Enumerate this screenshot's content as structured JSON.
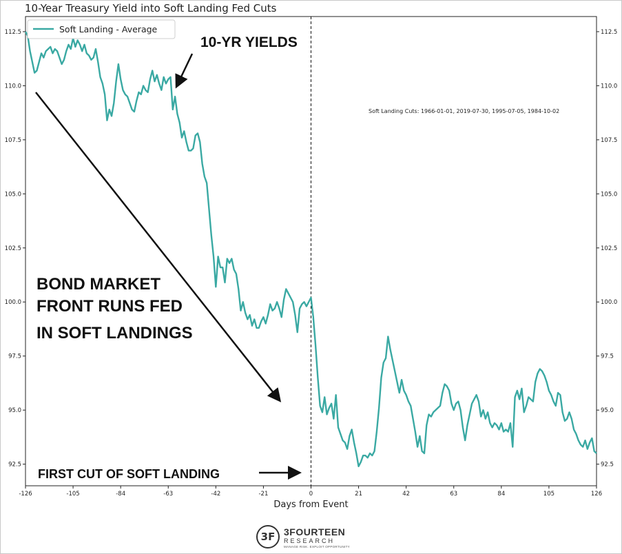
{
  "chart_data": {
    "type": "line",
    "title": "10-Year Treasury Yield into Soft Landing Fed Cuts",
    "xlabel": "Days from Event",
    "ylabel": "",
    "xlim": [
      -126,
      126
    ],
    "ylim": [
      91.5,
      113.2
    ],
    "x_ticks": [
      -126,
      -105,
      -84,
      -63,
      -42,
      -21,
      0,
      21,
      42,
      63,
      84,
      105,
      126
    ],
    "y_ticks": [
      "92.5",
      "95.0",
      "97.5",
      "100.0",
      "102.5",
      "105.0",
      "107.5",
      "110.0",
      "112.5"
    ],
    "legend_position": "top-left",
    "grid": false,
    "line_color": "#3aa9a3",
    "event_line_x": 0,
    "series": [
      {
        "name": "Soft Landing - Average",
        "points": [
          [
            -126,
            112.5
          ],
          [
            -125,
            112.3
          ],
          [
            -124,
            111.6
          ],
          [
            -123,
            111.1
          ],
          [
            -122,
            110.6
          ],
          [
            -121,
            110.7
          ],
          [
            -120,
            111.1
          ],
          [
            -119,
            111.5
          ],
          [
            -118,
            111.3
          ],
          [
            -117,
            111.6
          ],
          [
            -116,
            111.7
          ],
          [
            -115,
            111.8
          ],
          [
            -114,
            111.5
          ],
          [
            -113,
            111.7
          ],
          [
            -112,
            111.6
          ],
          [
            -111,
            111.3
          ],
          [
            -110,
            111.0
          ],
          [
            -109,
            111.2
          ],
          [
            -108,
            111.6
          ],
          [
            -107,
            111.9
          ],
          [
            -106,
            111.7
          ],
          [
            -105,
            112.2
          ],
          [
            -104,
            111.8
          ],
          [
            -103,
            112.1
          ],
          [
            -102,
            111.9
          ],
          [
            -101,
            111.6
          ],
          [
            -100,
            111.9
          ],
          [
            -99,
            111.5
          ],
          [
            -98,
            111.4
          ],
          [
            -97,
            111.2
          ],
          [
            -96,
            111.3
          ],
          [
            -95,
            111.7
          ],
          [
            -94,
            111.1
          ],
          [
            -93,
            110.4
          ],
          [
            -92,
            110.1
          ],
          [
            -91,
            109.6
          ],
          [
            -90,
            108.4
          ],
          [
            -89,
            108.9
          ],
          [
            -88,
            108.6
          ],
          [
            -87,
            109.2
          ],
          [
            -86,
            110.2
          ],
          [
            -85,
            111.0
          ],
          [
            -84,
            110.3
          ],
          [
            -83,
            109.8
          ],
          [
            -82,
            109.6
          ],
          [
            -81,
            109.5
          ],
          [
            -80,
            109.2
          ],
          [
            -79,
            108.9
          ],
          [
            -78,
            108.8
          ],
          [
            -77,
            109.3
          ],
          [
            -76,
            109.7
          ],
          [
            -75,
            109.6
          ],
          [
            -74,
            110.0
          ],
          [
            -73,
            109.8
          ],
          [
            -72,
            109.7
          ],
          [
            -71,
            110.3
          ],
          [
            -70,
            110.7
          ],
          [
            -69,
            110.2
          ],
          [
            -68,
            110.5
          ],
          [
            -67,
            110.1
          ],
          [
            -66,
            109.8
          ],
          [
            -65,
            110.4
          ],
          [
            -64,
            110.1
          ],
          [
            -63,
            110.3
          ],
          [
            -62,
            110.4
          ],
          [
            -61,
            108.9
          ],
          [
            -60,
            109.5
          ],
          [
            -59,
            108.7
          ],
          [
            -58,
            108.3
          ],
          [
            -57,
            107.6
          ],
          [
            -56,
            107.9
          ],
          [
            -55,
            107.4
          ],
          [
            -54,
            107.0
          ],
          [
            -53,
            107.0
          ],
          [
            -52,
            107.1
          ],
          [
            -51,
            107.7
          ],
          [
            -50,
            107.8
          ],
          [
            -49,
            107.4
          ],
          [
            -48,
            106.4
          ],
          [
            -47,
            105.8
          ],
          [
            -46,
            105.5
          ],
          [
            -45,
            104.3
          ],
          [
            -44,
            103.1
          ],
          [
            -43,
            102.1
          ],
          [
            -42,
            100.7
          ],
          [
            -41,
            102.1
          ],
          [
            -40,
            101.6
          ],
          [
            -39,
            101.6
          ],
          [
            -38,
            100.9
          ],
          [
            -37,
            102.0
          ],
          [
            -36,
            101.8
          ],
          [
            -35,
            102.0
          ],
          [
            -34,
            101.5
          ],
          [
            -33,
            101.3
          ],
          [
            -32,
            100.6
          ],
          [
            -31,
            99.6
          ],
          [
            -30,
            100.0
          ],
          [
            -29,
            99.5
          ],
          [
            -28,
            99.2
          ],
          [
            -27,
            99.4
          ],
          [
            -26,
            98.9
          ],
          [
            -25,
            99.2
          ],
          [
            -24,
            98.8
          ],
          [
            -23,
            98.8
          ],
          [
            -22,
            99.1
          ],
          [
            -21,
            99.3
          ],
          [
            -20,
            99.0
          ],
          [
            -19,
            99.4
          ],
          [
            -18,
            99.9
          ],
          [
            -17,
            99.6
          ],
          [
            -16,
            99.7
          ],
          [
            -15,
            100.0
          ],
          [
            -14,
            99.7
          ],
          [
            -13,
            99.3
          ],
          [
            -12,
            100.1
          ],
          [
            -11,
            100.6
          ],
          [
            -10,
            100.4
          ],
          [
            -9,
            100.2
          ],
          [
            -8,
            100.0
          ],
          [
            -7,
            99.4
          ],
          [
            -6,
            98.6
          ],
          [
            -5,
            99.7
          ],
          [
            -4,
            99.9
          ],
          [
            -3,
            100.0
          ],
          [
            -2,
            99.8
          ],
          [
            -1,
            100.0
          ],
          [
            0,
            100.2
          ],
          [
            1,
            99.3
          ],
          [
            2,
            98.0
          ],
          [
            3,
            96.5
          ],
          [
            4,
            95.2
          ],
          [
            5,
            94.9
          ],
          [
            6,
            95.6
          ],
          [
            7,
            94.8
          ],
          [
            8,
            95.1
          ],
          [
            9,
            95.3
          ],
          [
            10,
            94.6
          ],
          [
            11,
            95.7
          ],
          [
            12,
            94.2
          ],
          [
            13,
            93.9
          ],
          [
            14,
            93.6
          ],
          [
            15,
            93.5
          ],
          [
            16,
            93.2
          ],
          [
            17,
            93.8
          ],
          [
            18,
            94.1
          ],
          [
            19,
            93.5
          ],
          [
            20,
            93.0
          ],
          [
            21,
            92.4
          ],
          [
            22,
            92.6
          ],
          [
            23,
            92.9
          ],
          [
            24,
            92.9
          ],
          [
            25,
            92.8
          ],
          [
            26,
            93.0
          ],
          [
            27,
            92.9
          ],
          [
            28,
            93.1
          ],
          [
            29,
            94.0
          ],
          [
            30,
            95.1
          ],
          [
            31,
            96.5
          ],
          [
            32,
            97.2
          ],
          [
            33,
            97.4
          ],
          [
            34,
            98.4
          ],
          [
            35,
            97.8
          ],
          [
            36,
            97.3
          ],
          [
            37,
            96.8
          ],
          [
            38,
            96.3
          ],
          [
            39,
            95.8
          ],
          [
            40,
            96.4
          ],
          [
            41,
            95.9
          ],
          [
            42,
            95.7
          ],
          [
            43,
            95.4
          ],
          [
            44,
            95.2
          ],
          [
            45,
            94.6
          ],
          [
            46,
            94.0
          ],
          [
            47,
            93.3
          ],
          [
            48,
            93.8
          ],
          [
            49,
            93.1
          ],
          [
            50,
            93.0
          ],
          [
            51,
            94.3
          ],
          [
            52,
            94.8
          ],
          [
            53,
            94.7
          ],
          [
            54,
            94.9
          ],
          [
            55,
            95.0
          ],
          [
            56,
            95.1
          ],
          [
            57,
            95.2
          ],
          [
            58,
            95.8
          ],
          [
            59,
            96.2
          ],
          [
            60,
            96.1
          ],
          [
            61,
            95.9
          ],
          [
            62,
            95.3
          ],
          [
            63,
            95.0
          ],
          [
            64,
            95.3
          ],
          [
            65,
            95.4
          ],
          [
            66,
            95.0
          ],
          [
            67,
            94.2
          ],
          [
            68,
            93.6
          ],
          [
            69,
            94.3
          ],
          [
            70,
            94.8
          ],
          [
            71,
            95.3
          ],
          [
            72,
            95.5
          ],
          [
            73,
            95.7
          ],
          [
            74,
            95.4
          ],
          [
            75,
            94.7
          ],
          [
            76,
            95.0
          ],
          [
            77,
            94.6
          ],
          [
            78,
            94.9
          ],
          [
            79,
            94.4
          ],
          [
            80,
            94.2
          ],
          [
            81,
            94.4
          ],
          [
            82,
            94.3
          ],
          [
            83,
            94.1
          ],
          [
            84,
            94.4
          ],
          [
            85,
            94.0
          ],
          [
            86,
            94.1
          ],
          [
            87,
            94.0
          ],
          [
            88,
            94.4
          ],
          [
            89,
            93.3
          ],
          [
            90,
            95.6
          ],
          [
            91,
            95.9
          ],
          [
            92,
            95.5
          ],
          [
            93,
            96.0
          ],
          [
            94,
            94.9
          ],
          [
            95,
            95.2
          ],
          [
            96,
            95.6
          ],
          [
            97,
            95.5
          ],
          [
            98,
            95.4
          ],
          [
            99,
            96.3
          ],
          [
            100,
            96.7
          ],
          [
            101,
            96.9
          ],
          [
            102,
            96.8
          ],
          [
            103,
            96.6
          ],
          [
            104,
            96.3
          ],
          [
            105,
            95.9
          ],
          [
            106,
            95.7
          ],
          [
            107,
            95.4
          ],
          [
            108,
            95.2
          ],
          [
            109,
            95.8
          ],
          [
            110,
            95.7
          ],
          [
            111,
            94.9
          ],
          [
            112,
            94.5
          ],
          [
            113,
            94.6
          ],
          [
            114,
            94.9
          ],
          [
            115,
            94.6
          ],
          [
            116,
            94.1
          ],
          [
            117,
            93.9
          ],
          [
            118,
            93.6
          ],
          [
            119,
            93.4
          ],
          [
            120,
            93.3
          ],
          [
            121,
            93.6
          ],
          [
            122,
            93.2
          ],
          [
            123,
            93.5
          ],
          [
            124,
            93.7
          ],
          [
            125,
            93.1
          ],
          [
            126,
            93.0
          ]
        ]
      }
    ],
    "annotations": {
      "yields_label": "10-YR YIELDS",
      "bond_line1": "BOND MARKET",
      "bond_line2": "FRONT RUNS FED",
      "bond_line3": "IN SOFT LANDINGS",
      "first_cut": "FIRST CUT OF SOFT LANDING",
      "cuts_note": "Soft Landing Cuts: 1966-01-01, 2019-07-30, 1995-07-05, 1984-10-02"
    }
  },
  "logo": {
    "mark": "3F",
    "name": "3FOURTEEN",
    "sub": "RESEARCH",
    "tagline": "MANAGE RISK. EXPLOIT OPPORTUNITY"
  }
}
